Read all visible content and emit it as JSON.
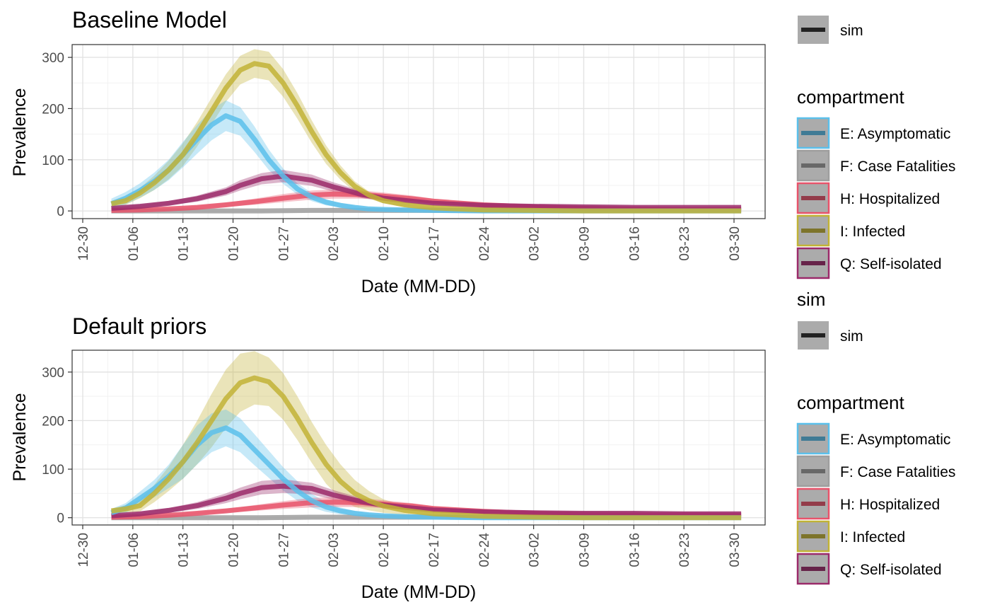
{
  "colors": {
    "E: Asymptomatic": "#5bc0eb",
    "F: Case Fatalities": "#9e9e9e",
    "H: Hospitalized": "#e8536b",
    "I: Infected": "#c2b336",
    "Q: Self-isolated": "#9b2a6a",
    "sim": "#222222"
  },
  "legend": {
    "sim_title": "sim",
    "sim_label": "sim",
    "compartment_title": "compartment",
    "compartment_labels": [
      "E: Asymptomatic",
      "F: Case Fatalities",
      "H: Hospitalized",
      "I: Infected",
      "Q: Self-isolated"
    ]
  },
  "chart_data": [
    {
      "type": "line",
      "title": "Baseline Model",
      "xlabel": "Date (MM-DD)",
      "ylabel": "Prevalence",
      "x_tick_labels": [
        "12-30",
        "01-06",
        "01-13",
        "01-20",
        "01-27",
        "02-03",
        "02-10",
        "02-17",
        "02-24",
        "03-02",
        "03-09",
        "03-16",
        "03-23",
        "03-30"
      ],
      "y_ticks": [
        0,
        100,
        200,
        300
      ],
      "ylim": [
        -15,
        325
      ],
      "grid": true,
      "series": [
        {
          "name": "E: Asymptomatic",
          "x": [
            "01-03",
            "01-05",
            "01-07",
            "01-09",
            "01-11",
            "01-13",
            "01-15",
            "01-17",
            "01-19",
            "01-21",
            "01-23",
            "01-25",
            "01-27",
            "01-29",
            "01-31",
            "02-02",
            "02-04",
            "02-06",
            "02-08",
            "02-10",
            "02-13",
            "02-17",
            "02-24",
            "03-02",
            "03-09",
            "03-16",
            "03-23",
            "03-31"
          ],
          "y": [
            14,
            25,
            40,
            58,
            80,
            110,
            140,
            168,
            186,
            175,
            140,
            100,
            68,
            43,
            27,
            17,
            11,
            7,
            4,
            3,
            2,
            1,
            0,
            0,
            0,
            0,
            0,
            0
          ],
          "ci": [
            10,
            12,
            14,
            17,
            20,
            25,
            28,
            30,
            30,
            28,
            25,
            20,
            15,
            11,
            8,
            6,
            4,
            3,
            2,
            1,
            1,
            0,
            0,
            0,
            0,
            0,
            0,
            0
          ]
        },
        {
          "name": "F: Case Fatalities",
          "x": [
            "01-03",
            "01-10",
            "01-17",
            "01-24",
            "01-31",
            "02-07",
            "02-14",
            "02-21",
            "03-01",
            "03-15",
            "03-31"
          ],
          "y": [
            0,
            0,
            0,
            0,
            1,
            1,
            1,
            1,
            1,
            1,
            1
          ],
          "ci": [
            0,
            0,
            0,
            0,
            0,
            0,
            0,
            0,
            0,
            0,
            0
          ]
        },
        {
          "name": "H: Hospitalized",
          "x": [
            "01-03",
            "01-07",
            "01-11",
            "01-15",
            "01-19",
            "01-23",
            "01-27",
            "01-31",
            "02-03",
            "02-07",
            "02-10",
            "02-14",
            "02-17",
            "02-24",
            "03-02",
            "03-09",
            "03-16",
            "03-23",
            "03-31"
          ],
          "y": [
            1,
            2,
            4,
            7,
            12,
            18,
            25,
            31,
            33,
            32,
            29,
            24,
            19,
            12,
            8,
            5,
            4,
            3,
            3
          ],
          "ci": [
            1,
            1,
            2,
            3,
            4,
            6,
            8,
            9,
            9,
            8,
            7,
            6,
            5,
            3,
            2,
            2,
            1,
            1,
            1
          ]
        },
        {
          "name": "I: Infected",
          "x": [
            "01-03",
            "01-05",
            "01-07",
            "01-09",
            "01-11",
            "01-13",
            "01-15",
            "01-17",
            "01-19",
            "01-21",
            "01-23",
            "01-25",
            "01-27",
            "01-29",
            "01-31",
            "02-02",
            "02-04",
            "02-06",
            "02-08",
            "02-10",
            "02-13",
            "02-17",
            "02-24",
            "03-02",
            "03-09",
            "03-16",
            "03-23",
            "03-31"
          ],
          "y": [
            14,
            20,
            35,
            55,
            80,
            110,
            150,
            195,
            240,
            275,
            288,
            283,
            250,
            205,
            155,
            110,
            75,
            48,
            31,
            20,
            12,
            6,
            2,
            1,
            0,
            0,
            0,
            0
          ],
          "ci": [
            6,
            8,
            10,
            14,
            18,
            22,
            24,
            26,
            27,
            28,
            28,
            28,
            27,
            25,
            22,
            18,
            14,
            10,
            7,
            5,
            3,
            2,
            1,
            0,
            0,
            0,
            0,
            0
          ]
        },
        {
          "name": "Q: Self-isolated",
          "x": [
            "01-03",
            "01-07",
            "01-11",
            "01-15",
            "01-19",
            "01-21",
            "01-24",
            "01-27",
            "01-31",
            "02-03",
            "02-07",
            "02-10",
            "02-14",
            "02-17",
            "02-24",
            "03-02",
            "03-09",
            "03-16",
            "03-23",
            "03-31"
          ],
          "y": [
            5,
            9,
            15,
            24,
            38,
            50,
            63,
            68,
            60,
            47,
            32,
            25,
            19,
            15,
            11,
            9,
            8,
            7,
            7,
            7
          ],
          "ci": [
            2,
            3,
            4,
            6,
            8,
            10,
            11,
            12,
            11,
            9,
            7,
            5,
            4,
            3,
            2,
            2,
            2,
            1,
            1,
            1
          ]
        }
      ]
    },
    {
      "type": "line",
      "title": "Default priors",
      "xlabel": "Date (MM-DD)",
      "ylabel": "Prevalence",
      "x_tick_labels": [
        "12-30",
        "01-06",
        "01-13",
        "01-20",
        "01-27",
        "02-03",
        "02-10",
        "02-17",
        "02-24",
        "03-02",
        "03-09",
        "03-16",
        "03-23",
        "03-30"
      ],
      "y_ticks": [
        0,
        100,
        200,
        300
      ],
      "ylim": [
        -15,
        345
      ],
      "grid": true,
      "series": [
        {
          "name": "E: Asymptomatic",
          "x": [
            "01-03",
            "01-05",
            "01-07",
            "01-09",
            "01-11",
            "01-13",
            "01-15",
            "01-17",
            "01-19",
            "01-21",
            "01-23",
            "01-25",
            "01-27",
            "01-29",
            "01-31",
            "02-02",
            "02-04",
            "02-06",
            "02-08",
            "02-10",
            "02-13",
            "02-17",
            "02-24",
            "03-02",
            "03-09",
            "03-16",
            "03-23",
            "03-31"
          ],
          "y": [
            10,
            20,
            40,
            60,
            85,
            115,
            150,
            175,
            185,
            170,
            140,
            110,
            80,
            55,
            35,
            22,
            14,
            9,
            6,
            4,
            2,
            1,
            0,
            0,
            0,
            0,
            0,
            0
          ],
          "ci": [
            8,
            10,
            14,
            18,
            24,
            35,
            40,
            40,
            38,
            35,
            32,
            28,
            24,
            20,
            14,
            10,
            7,
            5,
            3,
            2,
            1,
            1,
            0,
            0,
            0,
            0,
            0,
            0
          ]
        },
        {
          "name": "F: Case Fatalities",
          "x": [
            "01-03",
            "01-10",
            "01-17",
            "01-24",
            "01-31",
            "02-07",
            "02-14",
            "02-21",
            "03-01",
            "03-15",
            "03-31"
          ],
          "y": [
            0,
            0,
            0,
            0,
            1,
            1,
            1,
            1,
            1,
            1,
            1
          ],
          "ci": [
            0,
            0,
            0,
            0,
            0,
            0,
            0,
            0,
            0,
            0,
            0
          ]
        },
        {
          "name": "H: Hospitalized",
          "x": [
            "01-03",
            "01-07",
            "01-11",
            "01-15",
            "01-19",
            "01-23",
            "01-27",
            "01-31",
            "02-03",
            "02-07",
            "02-10",
            "02-14",
            "02-17",
            "02-24",
            "03-02",
            "03-09",
            "03-16",
            "03-23",
            "03-31"
          ],
          "y": [
            1,
            2,
            5,
            9,
            14,
            20,
            26,
            31,
            32,
            31,
            28,
            24,
            19,
            13,
            9,
            7,
            6,
            6,
            5
          ],
          "ci": [
            1,
            1,
            2,
            3,
            4,
            6,
            8,
            10,
            10,
            9,
            8,
            6,
            5,
            4,
            3,
            2,
            2,
            2,
            2
          ]
        },
        {
          "name": "I: Infected",
          "x": [
            "01-03",
            "01-05",
            "01-07",
            "01-09",
            "01-11",
            "01-13",
            "01-15",
            "01-17",
            "01-19",
            "01-21",
            "01-23",
            "01-25",
            "01-27",
            "01-29",
            "01-31",
            "02-02",
            "02-04",
            "02-06",
            "02-08",
            "02-10",
            "02-13",
            "02-17",
            "02-24",
            "03-02",
            "03-09",
            "03-16",
            "03-23",
            "03-31"
          ],
          "y": [
            14,
            18,
            25,
            50,
            80,
            115,
            155,
            200,
            245,
            278,
            288,
            280,
            250,
            205,
            155,
            110,
            75,
            50,
            35,
            24,
            15,
            8,
            3,
            1,
            0,
            0,
            0,
            0
          ],
          "ci": [
            5,
            8,
            12,
            18,
            25,
            35,
            45,
            55,
            60,
            60,
            55,
            50,
            48,
            45,
            42,
            40,
            35,
            28,
            20,
            14,
            9,
            5,
            2,
            1,
            0,
            0,
            0,
            0
          ]
        },
        {
          "name": "Q: Self-isolated",
          "x": [
            "01-03",
            "01-07",
            "01-11",
            "01-15",
            "01-19",
            "01-21",
            "01-24",
            "01-27",
            "01-31",
            "02-03",
            "02-07",
            "02-10",
            "02-14",
            "02-17",
            "02-24",
            "03-02",
            "03-09",
            "03-16",
            "03-23",
            "03-31"
          ],
          "y": [
            4,
            8,
            15,
            25,
            40,
            50,
            62,
            65,
            60,
            47,
            33,
            26,
            20,
            16,
            12,
            10,
            9,
            9,
            8,
            8
          ],
          "ci": [
            2,
            3,
            5,
            7,
            10,
            12,
            14,
            14,
            12,
            10,
            7,
            6,
            5,
            4,
            3,
            2,
            2,
            2,
            2,
            2
          ]
        }
      ]
    }
  ]
}
